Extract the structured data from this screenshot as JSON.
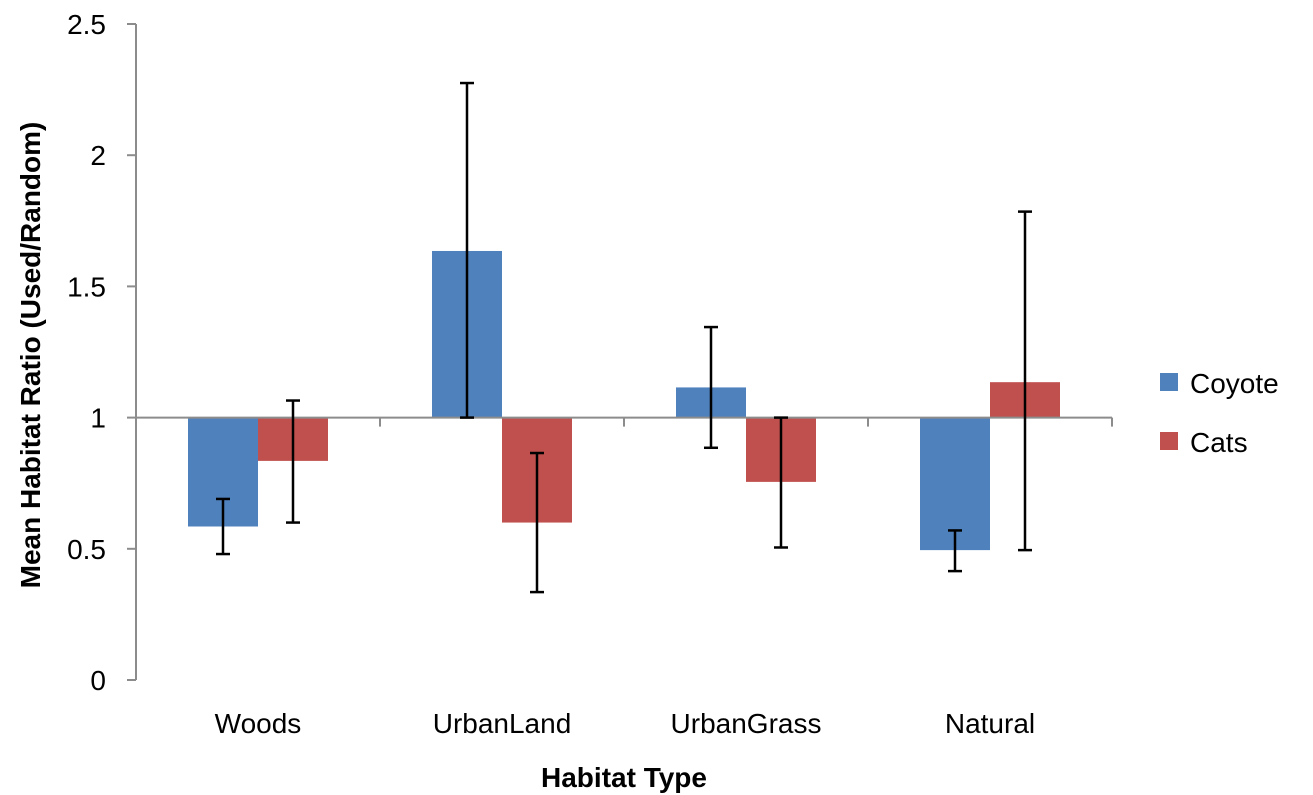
{
  "chart_data": {
    "type": "bar",
    "title": "",
    "xlabel": "Habitat Type",
    "ylabel": "Mean Habitat Ratio (Used/Random)",
    "categories": [
      "Woods",
      "UrbanLand",
      "UrbanGrass",
      "Natural"
    ],
    "ylim": [
      0,
      2.5
    ],
    "yticks": [
      0,
      0.5,
      1,
      1.5,
      2,
      2.5
    ],
    "ytick_labels": [
      "0",
      "0.5",
      "1",
      "1.5",
      "2",
      "2.5"
    ],
    "baseline": 1,
    "grid": false,
    "legend_position": "right",
    "series": [
      {
        "name": "Coyote",
        "color": "#4f81bd",
        "values": [
          0.585,
          1.635,
          1.115,
          0.495
        ],
        "error_low": [
          0.48,
          1.0,
          0.885,
          0.415
        ],
        "error_high": [
          0.69,
          2.275,
          1.345,
          0.57
        ]
      },
      {
        "name": "Cats",
        "color": "#c0504d",
        "values": [
          0.835,
          0.6,
          0.755,
          1.135
        ],
        "error_low": [
          0.6,
          0.335,
          0.505,
          0.495
        ],
        "error_high": [
          1.065,
          0.865,
          1.0,
          1.785
        ]
      }
    ]
  }
}
